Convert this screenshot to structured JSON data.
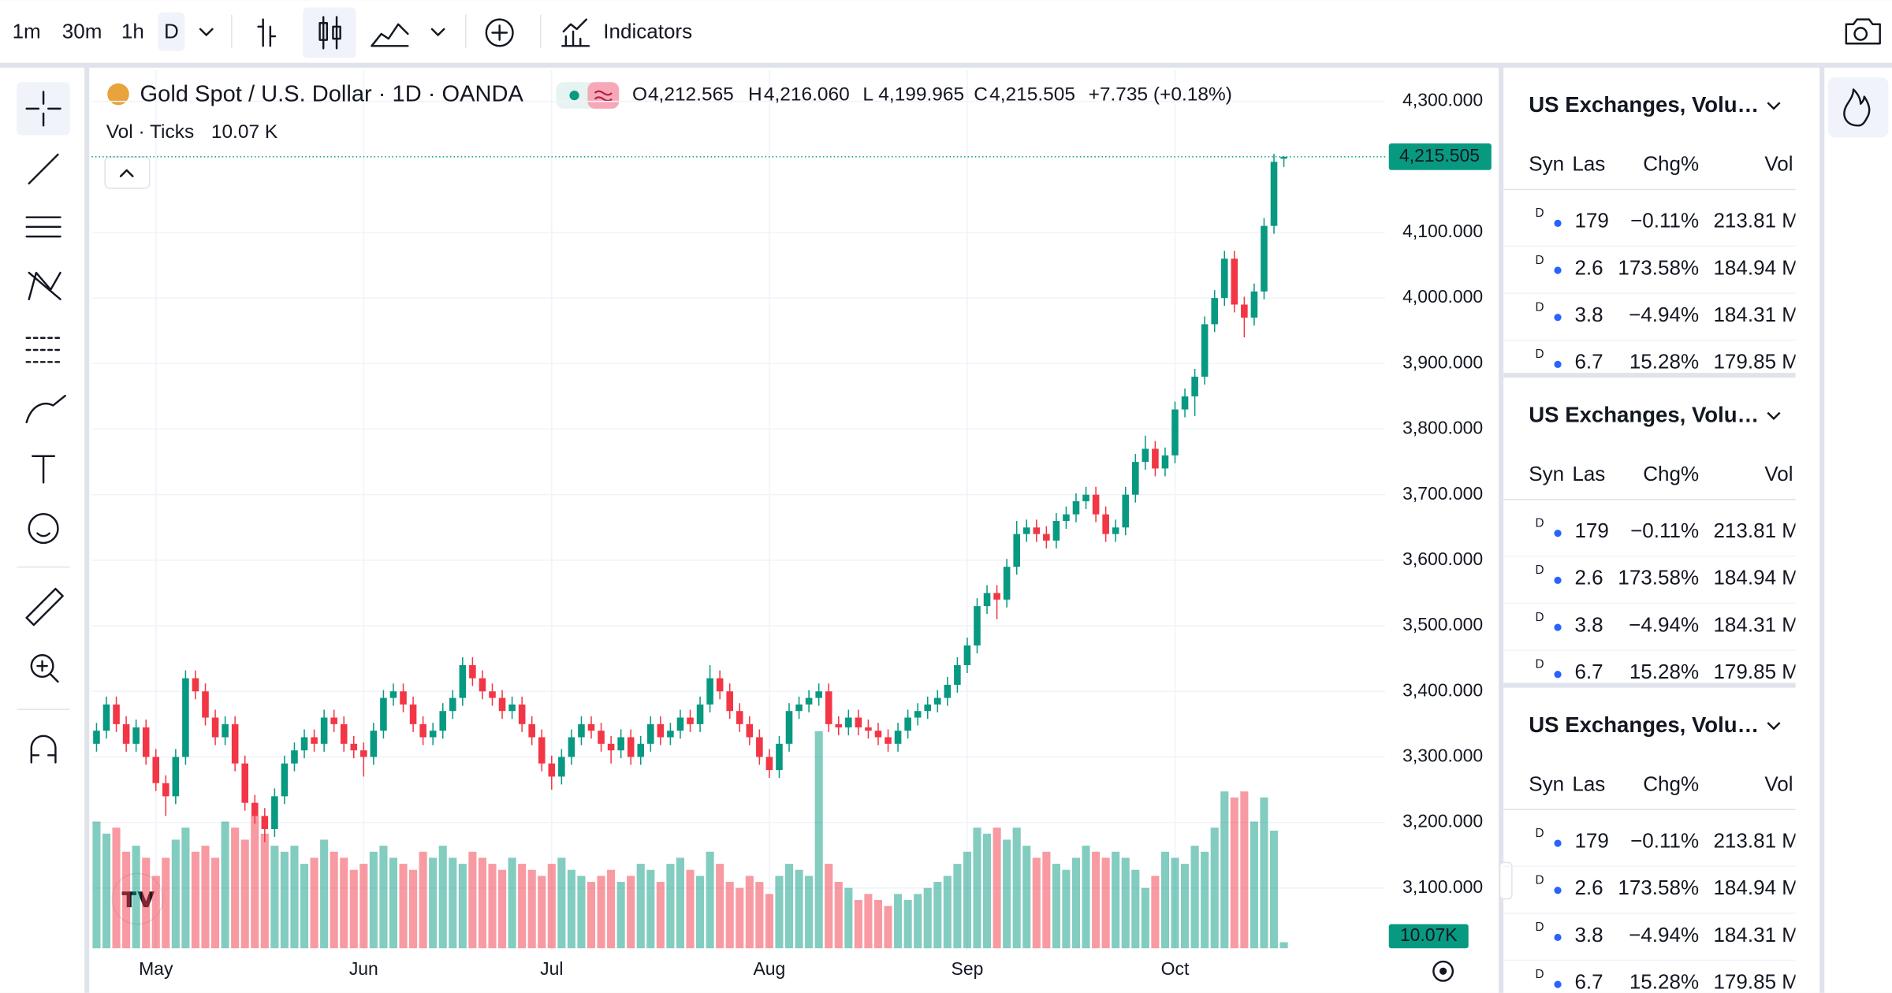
{
  "toolbar": {
    "intervals": [
      "1m",
      "30m",
      "1h",
      "D"
    ],
    "indicators": "Indicators"
  },
  "chart_data": {
    "type": "candlestick",
    "title": "Gold Spot / U.S. Dollar · 1D · OANDA",
    "quote": [
      {
        "key": "O",
        "text": "4,212.565"
      },
      {
        "key": "H",
        "text": "4,216.060"
      },
      {
        "key": "L",
        "text": "4,199.965"
      },
      {
        "key": "C",
        "text": "4,215.505"
      }
    ],
    "change": "+7.735 (+0.18%)",
    "volume_title": "Vol · Ticks",
    "volume_value": "10.07 K",
    "volume_tag": "10.07K",
    "ylim": [
      3010,
      4344
    ],
    "yticks": [
      {
        "value": 4300,
        "label": "4,300.000"
      },
      {
        "value": 4100,
        "label": "4,100.000"
      },
      {
        "value": 4000,
        "label": "4,000.000"
      },
      {
        "value": 3900,
        "label": "3,900.000"
      },
      {
        "value": 3800,
        "label": "3,800.000"
      },
      {
        "value": 3700,
        "label": "3,700.000"
      },
      {
        "value": 3600,
        "label": "3,600.000"
      },
      {
        "value": 3500,
        "label": "3,500.000"
      },
      {
        "value": 3400,
        "label": "3,400.000"
      },
      {
        "value": 3300,
        "label": "3,300.000"
      },
      {
        "value": 3200,
        "label": "3,200.000"
      },
      {
        "value": 3100,
        "label": "3,100.000"
      }
    ],
    "xticks": [
      {
        "value": 6,
        "label": "May"
      },
      {
        "value": 27,
        "label": "Jun"
      },
      {
        "value": 46,
        "label": "Jul"
      },
      {
        "value": 68,
        "label": "Aug"
      },
      {
        "value": 88,
        "label": "Sep"
      },
      {
        "value": 109,
        "label": "Oct"
      }
    ],
    "last_price": {
      "value": 4215.505,
      "label": "4,215.505"
    },
    "up_color": "#089981",
    "down_color": "#f23645",
    "grid": true,
    "candles": [
      [
        3320,
        3352,
        3308,
        3340
      ],
      [
        3340,
        3392,
        3328,
        3380
      ],
      [
        3380,
        3392,
        3338,
        3350
      ],
      [
        3350,
        3362,
        3308,
        3320
      ],
      [
        3320,
        3357,
        3308,
        3345
      ],
      [
        3345,
        3357,
        3288,
        3300
      ],
      [
        3300,
        3312,
        3248,
        3260
      ],
      [
        3260,
        3272,
        3210,
        3240
      ],
      [
        3240,
        3312,
        3228,
        3300
      ],
      [
        3300,
        3432,
        3288,
        3420
      ],
      [
        3420,
        3432,
        3388,
        3400
      ],
      [
        3400,
        3412,
        3348,
        3360
      ],
      [
        3360,
        3372,
        3318,
        3330
      ],
      [
        3330,
        3362,
        3318,
        3350
      ],
      [
        3350,
        3362,
        3278,
        3290
      ],
      [
        3290,
        3302,
        3218,
        3230
      ],
      [
        3230,
        3242,
        3198,
        3210
      ],
      [
        3210,
        3222,
        3170,
        3190
      ],
      [
        3190,
        3252,
        3178,
        3240
      ],
      [
        3240,
        3302,
        3228,
        3290
      ],
      [
        3290,
        3322,
        3278,
        3310
      ],
      [
        3310,
        3342,
        3298,
        3330
      ],
      [
        3330,
        3342,
        3308,
        3320
      ],
      [
        3320,
        3372,
        3308,
        3360
      ],
      [
        3360,
        3372,
        3338,
        3350
      ],
      [
        3350,
        3362,
        3308,
        3320
      ],
      [
        3320,
        3332,
        3298,
        3310
      ],
      [
        3310,
        3322,
        3270,
        3300
      ],
      [
        3300,
        3352,
        3288,
        3340
      ],
      [
        3340,
        3402,
        3328,
        3390
      ],
      [
        3390,
        3412,
        3378,
        3400
      ],
      [
        3400,
        3412,
        3368,
        3380
      ],
      [
        3380,
        3392,
        3338,
        3350
      ],
      [
        3350,
        3362,
        3318,
        3330
      ],
      [
        3330,
        3352,
        3318,
        3340
      ],
      [
        3340,
        3382,
        3328,
        3370
      ],
      [
        3370,
        3402,
        3358,
        3390
      ],
      [
        3390,
        3452,
        3378,
        3440
      ],
      [
        3440,
        3452,
        3408,
        3420
      ],
      [
        3420,
        3432,
        3388,
        3400
      ],
      [
        3400,
        3412,
        3378,
        3390
      ],
      [
        3390,
        3402,
        3358,
        3370
      ],
      [
        3370,
        3392,
        3358,
        3380
      ],
      [
        3380,
        3392,
        3338,
        3350
      ],
      [
        3350,
        3362,
        3318,
        3330
      ],
      [
        3330,
        3342,
        3278,
        3290
      ],
      [
        3290,
        3302,
        3250,
        3270
      ],
      [
        3270,
        3312,
        3258,
        3300
      ],
      [
        3300,
        3342,
        3288,
        3330
      ],
      [
        3330,
        3362,
        3318,
        3350
      ],
      [
        3350,
        3362,
        3328,
        3340
      ],
      [
        3340,
        3352,
        3308,
        3320
      ],
      [
        3320,
        3332,
        3290,
        3310
      ],
      [
        3310,
        3342,
        3298,
        3330
      ],
      [
        3330,
        3342,
        3288,
        3300
      ],
      [
        3300,
        3332,
        3288,
        3320
      ],
      [
        3320,
        3362,
        3308,
        3350
      ],
      [
        3350,
        3362,
        3318,
        3330
      ],
      [
        3330,
        3352,
        3318,
        3340
      ],
      [
        3340,
        3372,
        3328,
        3360
      ],
      [
        3360,
        3372,
        3338,
        3350
      ],
      [
        3350,
        3392,
        3338,
        3380
      ],
      [
        3380,
        3440,
        3368,
        3420
      ],
      [
        3420,
        3432,
        3388,
        3400
      ],
      [
        3400,
        3412,
        3358,
        3370
      ],
      [
        3370,
        3382,
        3338,
        3350
      ],
      [
        3350,
        3362,
        3318,
        3330
      ],
      [
        3330,
        3342,
        3288,
        3300
      ],
      [
        3300,
        3312,
        3268,
        3280
      ],
      [
        3280,
        3332,
        3268,
        3320
      ],
      [
        3320,
        3382,
        3308,
        3370
      ],
      [
        3370,
        3392,
        3358,
        3380
      ],
      [
        3380,
        3402,
        3368,
        3390
      ],
      [
        3390,
        3412,
        3378,
        3400
      ],
      [
        3400,
        3412,
        3338,
        3350
      ],
      [
        3350,
        3362,
        3333,
        3345
      ],
      [
        3345,
        3372,
        3333,
        3360
      ],
      [
        3360,
        3372,
        3333,
        3345
      ],
      [
        3345,
        3357,
        3328,
        3340
      ],
      [
        3340,
        3352,
        3318,
        3330
      ],
      [
        3330,
        3342,
        3308,
        3320
      ],
      [
        3320,
        3352,
        3308,
        3340
      ],
      [
        3340,
        3372,
        3328,
        3360
      ],
      [
        3360,
        3382,
        3348,
        3370
      ],
      [
        3370,
        3392,
        3358,
        3380
      ],
      [
        3380,
        3402,
        3368,
        3390
      ],
      [
        3390,
        3422,
        3378,
        3410
      ],
      [
        3410,
        3452,
        3398,
        3440
      ],
      [
        3440,
        3482,
        3428,
        3470
      ],
      [
        3470,
        3542,
        3458,
        3530
      ],
      [
        3530,
        3562,
        3518,
        3550
      ],
      [
        3550,
        3562,
        3510,
        3540
      ],
      [
        3540,
        3602,
        3528,
        3590
      ],
      [
        3590,
        3660,
        3578,
        3640
      ],
      [
        3640,
        3662,
        3628,
        3650
      ],
      [
        3650,
        3662,
        3628,
        3640
      ],
      [
        3640,
        3652,
        3618,
        3630
      ],
      [
        3630,
        3672,
        3618,
        3660
      ],
      [
        3660,
        3682,
        3648,
        3670
      ],
      [
        3670,
        3702,
        3658,
        3690
      ],
      [
        3690,
        3712,
        3678,
        3700
      ],
      [
        3700,
        3712,
        3658,
        3670
      ],
      [
        3670,
        3682,
        3628,
        3640
      ],
      [
        3640,
        3662,
        3628,
        3650
      ],
      [
        3650,
        3712,
        3638,
        3700
      ],
      [
        3700,
        3762,
        3688,
        3750
      ],
      [
        3750,
        3790,
        3738,
        3770
      ],
      [
        3770,
        3782,
        3728,
        3740
      ],
      [
        3740,
        3772,
        3728,
        3760
      ],
      [
        3760,
        3842,
        3748,
        3830
      ],
      [
        3830,
        3862,
        3818,
        3850
      ],
      [
        3850,
        3892,
        3820,
        3880
      ],
      [
        3880,
        3972,
        3868,
        3960
      ],
      [
        3960,
        4012,
        3948,
        4000
      ],
      [
        4000,
        4072,
        3988,
        4060
      ],
      [
        4060,
        4072,
        3978,
        3990
      ],
      [
        3990,
        4002,
        3940,
        3970
      ],
      [
        3970,
        4022,
        3958,
        4010
      ],
      [
        4010,
        4122,
        3998,
        4110
      ],
      [
        4110,
        4220,
        4098,
        4207.77
      ],
      [
        4212.565,
        4216.06,
        4199.965,
        4215.505
      ]
    ],
    "volume": [
      210,
      190,
      200,
      160,
      170,
      150,
      120,
      150,
      180,
      200,
      160,
      170,
      150,
      210,
      200,
      180,
      220,
      190,
      170,
      160,
      170,
      140,
      150,
      180,
      160,
      150,
      130,
      140,
      160,
      170,
      150,
      140,
      130,
      160,
      150,
      170,
      150,
      140,
      160,
      150,
      140,
      130,
      150,
      140,
      130,
      120,
      140,
      150,
      130,
      120,
      110,
      120,
      130,
      110,
      120,
      140,
      130,
      110,
      140,
      150,
      130,
      120,
      160,
      140,
      110,
      100,
      120,
      110,
      90,
      120,
      140,
      130,
      120,
      360,
      140,
      110,
      100,
      80,
      90,
      80,
      70,
      90,
      80,
      90,
      100,
      110,
      120,
      140,
      160,
      200,
      190,
      200,
      180,
      200,
      170,
      150,
      160,
      140,
      130,
      150,
      170,
      160,
      150,
      160,
      150,
      130,
      100,
      120,
      160,
      150,
      140,
      170,
      160,
      200,
      260,
      250,
      260,
      210,
      250,
      195,
      10.07
    ]
  },
  "watchlist": [
    {
      "title": "US Exchanges, Volu…",
      "columns": [
        "Syn",
        "Las",
        "Chg%",
        "Vol"
      ],
      "rows": [
        {
          "flag": "D",
          "last": "179",
          "change": "−0.11%",
          "volume": "213.81 M",
          "color": "#f23645"
        },
        {
          "flag": "D",
          "last": "2.6",
          "change": "173.58%",
          "volume": "184.94 M",
          "color": "#089981"
        },
        {
          "flag": "D",
          "last": "3.8",
          "change": "−4.94%",
          "volume": "184.31 M",
          "color": "#f23645"
        },
        {
          "flag": "D",
          "last": "6.7",
          "change": "15.28%",
          "volume": "179.85 M",
          "color": "#089981"
        }
      ]
    },
    {
      "title": "US Exchanges, Volu…",
      "columns": [
        "Syn",
        "Las",
        "Chg%",
        "Vol"
      ],
      "rows": [
        {
          "flag": "D",
          "last": "179",
          "change": "−0.11%",
          "volume": "213.81 M",
          "color": "#f23645"
        },
        {
          "flag": "D",
          "last": "2.6",
          "change": "173.58%",
          "volume": "184.94 M",
          "color": "#089981"
        },
        {
          "flag": "D",
          "last": "3.8",
          "change": "−4.94%",
          "volume": "184.31 M",
          "color": "#f23645"
        },
        {
          "flag": "D",
          "last": "6.7",
          "change": "15.28%",
          "volume": "179.85 M",
          "color": "#089981"
        }
      ]
    },
    {
      "title": "US Exchanges, Volu…",
      "columns": [
        "Syn",
        "Las",
        "Chg%",
        "Vol"
      ],
      "rows": [
        {
          "flag": "D",
          "last": "179",
          "change": "−0.11%",
          "volume": "213.81 M",
          "color": "#f23645"
        },
        {
          "flag": "D",
          "last": "2.6",
          "change": "173.58%",
          "volume": "184.94 M",
          "color": "#089981"
        },
        {
          "flag": "D",
          "last": "3.8",
          "change": "−4.94%",
          "volume": "184.31 M",
          "color": "#f23645"
        },
        {
          "flag": "D",
          "last": "6.7",
          "change": "15.28%",
          "volume": "179.85 M",
          "color": "#089981"
        }
      ]
    }
  ]
}
